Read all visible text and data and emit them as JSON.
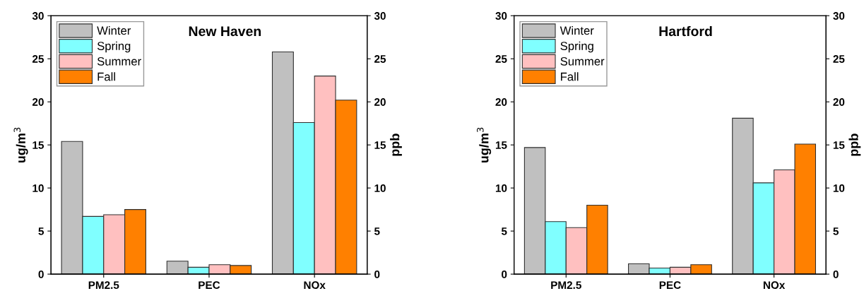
{
  "chart_data": [
    {
      "type": "bar",
      "title": "New Haven",
      "ylabel": "ug/m$^{3}$",
      "y2label": "ppb",
      "categories": [
        "PM2.5",
        "PEC",
        "NOx"
      ],
      "series": [
        {
          "name": "Winter",
          "color": "#c0c0c0",
          "values": [
            15.4,
            1.5,
            25.8
          ]
        },
        {
          "name": "Spring",
          "color": "#80ffff",
          "values": [
            6.7,
            0.8,
            17.6
          ]
        },
        {
          "name": "Summer",
          "color": "#ffc0c0",
          "values": [
            6.9,
            1.1,
            23.0
          ]
        },
        {
          "name": "Fall",
          "color": "#ff8000",
          "values": [
            7.5,
            1.0,
            20.2
          ]
        }
      ],
      "ylim": [
        0,
        30
      ],
      "yticks": [
        0,
        5,
        10,
        15,
        20,
        25,
        30
      ],
      "y2lim": [
        0,
        30
      ],
      "y2ticks": [
        0,
        5,
        10,
        15,
        20,
        25,
        30
      ],
      "legend": "top left",
      "grid": false
    },
    {
      "type": "bar",
      "title": "Hartford",
      "ylabel": "ug/m$^{3}$",
      "y2label": "ppb",
      "categories": [
        "PM2.5",
        "PEC",
        "NOx"
      ],
      "series": [
        {
          "name": "Winter",
          "color": "#c0c0c0",
          "values": [
            14.7,
            1.2,
            18.1
          ]
        },
        {
          "name": "Spring",
          "color": "#80ffff",
          "values": [
            6.1,
            0.7,
            10.6
          ]
        },
        {
          "name": "Summer",
          "color": "#ffc0c0",
          "values": [
            5.4,
            0.8,
            12.1
          ]
        },
        {
          "name": "Fall",
          "color": "#ff8000",
          "values": [
            8.0,
            1.1,
            15.1
          ]
        }
      ],
      "ylim": [
        0,
        30
      ],
      "yticks": [
        0,
        5,
        10,
        15,
        20,
        25,
        30
      ],
      "y2lim": [
        0,
        30
      ],
      "y2ticks": [
        0,
        5,
        10,
        15,
        20,
        25,
        30
      ],
      "legend": "top left",
      "grid": false
    }
  ]
}
